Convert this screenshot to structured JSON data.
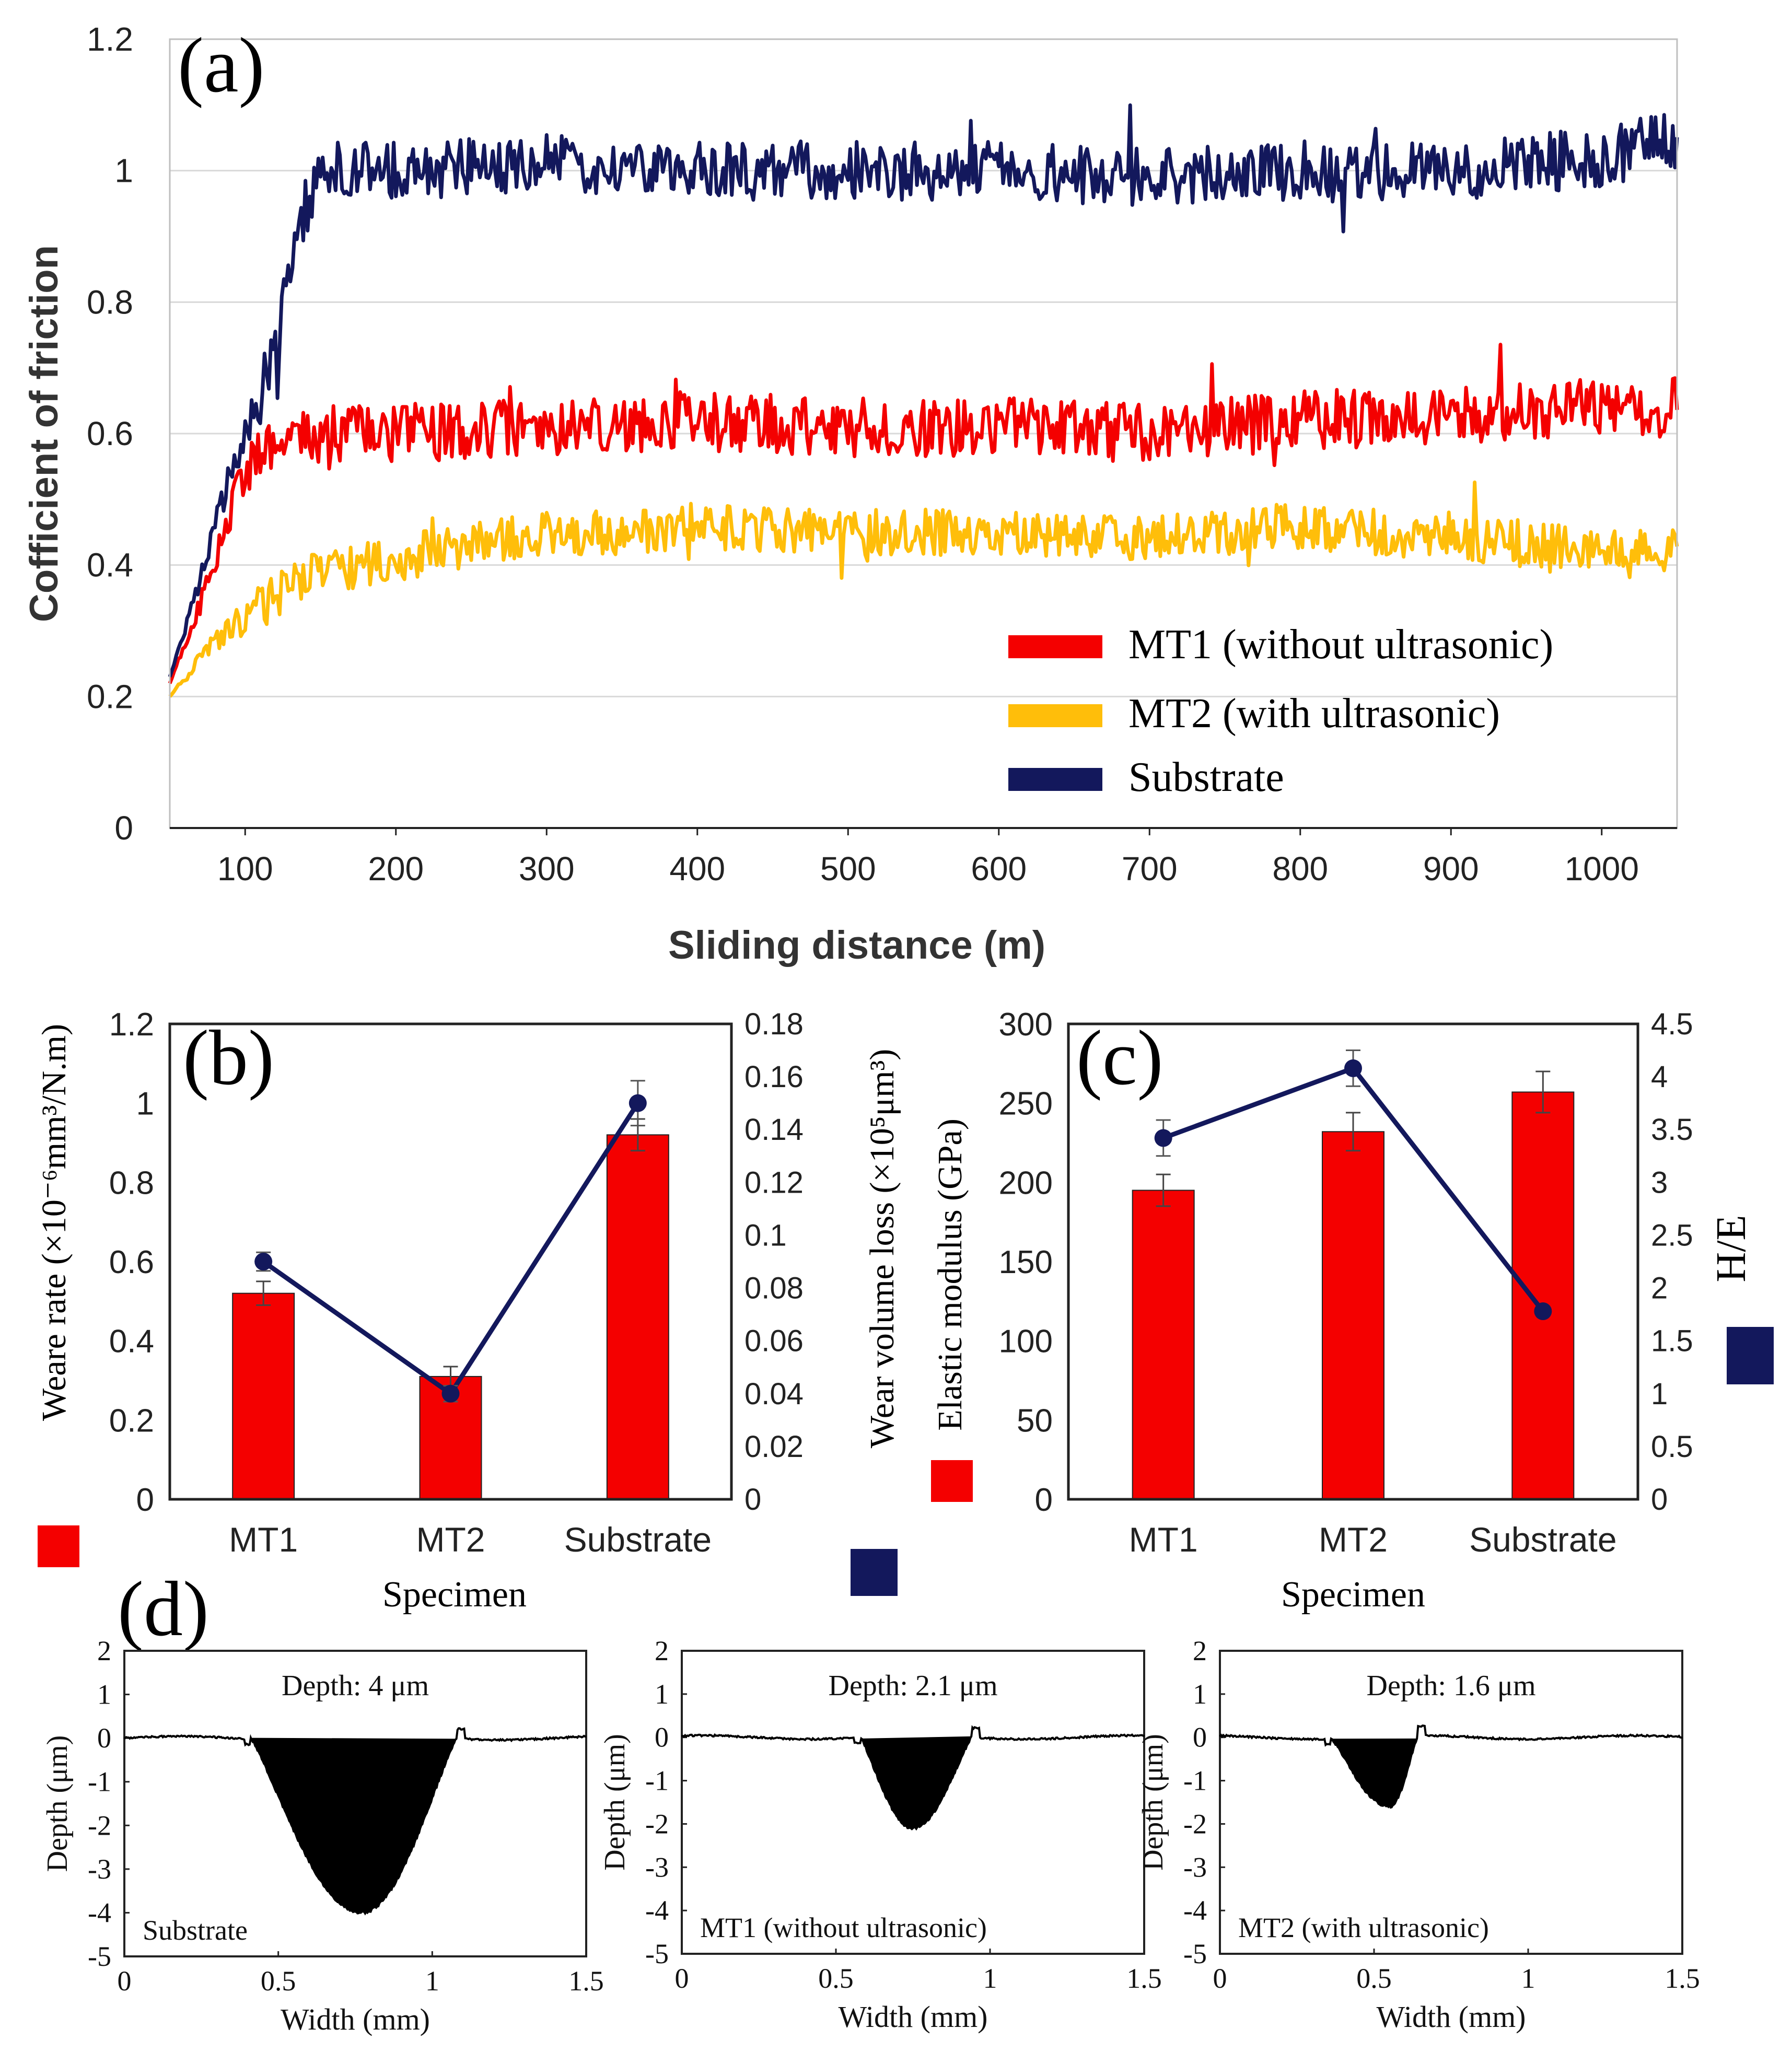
{
  "colors": {
    "mt1": "#f40000",
    "mt2": "#ffbe0a",
    "substrate": "#13185c",
    "bar": "#f40000",
    "line": "#13185c",
    "grid": "#d9d9d9",
    "axis": "#222222",
    "profile": "#000000"
  },
  "chart_data": [
    {
      "id": "a",
      "type": "line",
      "panel_label": "(a)",
      "xlabel": "Sliding distance (m)",
      "ylabel": "Cofficient of friction",
      "xlim": [
        50,
        1050
      ],
      "ylim": [
        0,
        1.2
      ],
      "xticks": [
        100,
        200,
        300,
        400,
        500,
        600,
        700,
        800,
        900,
        1000
      ],
      "yticks": [
        0,
        0.2,
        0.4,
        0.6,
        0.8,
        1,
        1.2
      ],
      "legend": "bottom-right",
      "series": [
        {
          "name": "MT1 (without ultrasonic)",
          "key": "mt1",
          "x": [
            50,
            60,
            70,
            80,
            90,
            100,
            110,
            120,
            130,
            150,
            200,
            300,
            400,
            500,
            600,
            700,
            800,
            900,
            1000,
            1050
          ],
          "y": [
            0.22,
            0.28,
            0.34,
            0.41,
            0.48,
            0.54,
            0.58,
            0.59,
            0.6,
            0.6,
            0.6,
            0.61,
            0.62,
            0.61,
            0.61,
            0.6,
            0.62,
            0.63,
            0.64,
            0.64
          ],
          "noise": 0.045
        },
        {
          "name": "MT2 (with ultrasonic)",
          "key": "mt2",
          "x": [
            50,
            75,
            100,
            125,
            150,
            200,
            250,
            300,
            350,
            400,
            500,
            600,
            700,
            800,
            900,
            1000,
            1050
          ],
          "y": [
            0.2,
            0.27,
            0.32,
            0.36,
            0.39,
            0.41,
            0.43,
            0.45,
            0.45,
            0.46,
            0.45,
            0.45,
            0.44,
            0.46,
            0.44,
            0.42,
            0.42
          ],
          "noise": 0.035
        },
        {
          "name": "Substrate",
          "key": "substrate",
          "x": [
            50,
            60,
            70,
            80,
            90,
            100,
            110,
            120,
            130,
            140,
            150,
            160,
            200,
            300,
            400,
            500,
            600,
            700,
            800,
            900,
            1000,
            1050
          ],
          "y": [
            0.23,
            0.3,
            0.38,
            0.46,
            0.53,
            0.6,
            0.66,
            0.72,
            0.85,
            0.94,
            0.98,
            1.0,
            1.0,
            1.01,
            1.0,
            1.0,
            1.0,
            0.99,
            1.0,
            1.0,
            1.02,
            1.05
          ],
          "noise": 0.045
        }
      ]
    },
    {
      "id": "b",
      "type": "bar",
      "panel_label": "(b)",
      "categories": [
        "MT1",
        "MT2",
        "Substrate"
      ],
      "xlabel": "Specimen",
      "ylabel_left": "Weare rate (×10⁻⁶mm³/N.m)",
      "ylabel_right": "Wear volume  loss  (×10⁵μm³)",
      "ylim_left": [
        0,
        1.2
      ],
      "yticks_left": [
        0,
        0.2,
        0.4,
        0.6,
        0.8,
        1,
        1.2
      ],
      "ylim_right": [
        0,
        0.18
      ],
      "yticks_right": [
        0,
        0.02,
        0.04,
        0.06,
        0.08,
        0.1,
        0.12,
        0.14,
        0.16,
        0.18
      ],
      "series": [
        {
          "name": "Weare rate",
          "axis": "left",
          "kind": "bar",
          "values": [
            0.52,
            0.31,
            0.92
          ],
          "errors": [
            0.03,
            0.025,
            0.04
          ]
        },
        {
          "name": "Wear volume loss",
          "axis": "right",
          "kind": "line",
          "values": [
            0.09,
            0.04,
            0.15
          ],
          "errors": [
            0.0035,
            0.003,
            0.0085
          ]
        }
      ]
    },
    {
      "id": "c",
      "type": "bar",
      "panel_label": "(c)",
      "categories": [
        "MT1",
        "MT2",
        "Substrate"
      ],
      "xlabel": "Specimen",
      "ylabel_left": "Elastic  modulus  (GPa)",
      "ylabel_right": "H/E",
      "ylim_left": [
        0,
        300
      ],
      "yticks_left": [
        0,
        50,
        100,
        150,
        200,
        250,
        300
      ],
      "ylim_right": [
        0,
        4.5
      ],
      "yticks_right": [
        0,
        0.5,
        1,
        1.5,
        2,
        2.5,
        3,
        3.5,
        4,
        4.5
      ],
      "series": [
        {
          "name": "Elastic modulus",
          "axis": "left",
          "kind": "bar",
          "values": [
            195,
            232,
            257
          ],
          "errors": [
            10,
            12,
            13
          ]
        },
        {
          "name": "H/E",
          "axis": "right",
          "kind": "line",
          "values": [
            3.42,
            4.08,
            1.78
          ],
          "errors": [
            0.17,
            0.17,
            0
          ]
        }
      ]
    },
    {
      "id": "d",
      "type": "area",
      "panel_label": "(d)",
      "xlabel": "Width (mm)",
      "ylabel": "Depth (μm)",
      "xlim": [
        0,
        1.5
      ],
      "ylim": [
        -5,
        2
      ],
      "xticks": [
        0,
        0.5,
        1,
        1.5
      ],
      "yticks": [
        2,
        1,
        0,
        -1,
        -2,
        -3,
        -4,
        -5
      ],
      "profiles": [
        {
          "name": "Substrate",
          "depth_label": "Depth: 4 μm",
          "depth": 4.0,
          "groove": [
            0.41,
            1.08
          ],
          "deepest_at": 0.77
        },
        {
          "name": "MT1 (without ultrasonic)",
          "depth_label": "Depth: 2.1 μm",
          "depth": 2.1,
          "groove": [
            0.58,
            0.94
          ],
          "deepest_at": 0.75
        },
        {
          "name": "MT2 (with ultrasonic)",
          "depth_label": "Depth: 1.6 μm",
          "depth": 1.6,
          "groove": [
            0.36,
            0.64
          ],
          "deepest_at": 0.55
        }
      ]
    }
  ]
}
